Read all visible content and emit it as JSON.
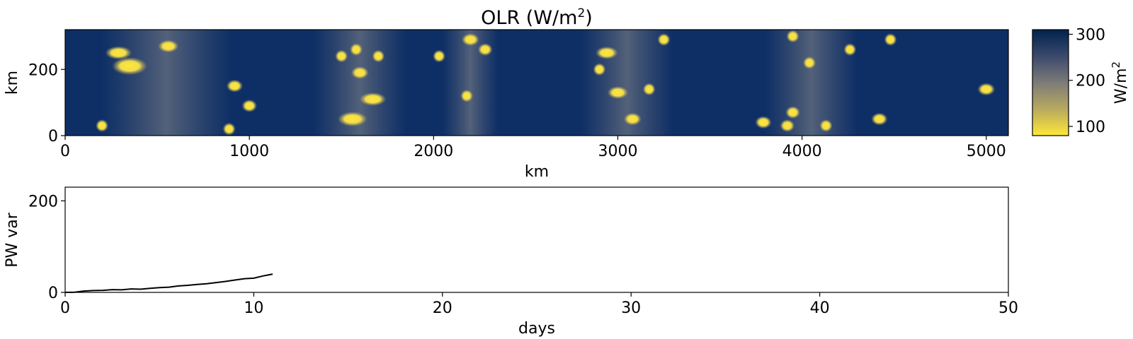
{
  "chart_data": [
    {
      "type": "heatmap",
      "title": "OLR (W/m",
      "title_superscript": "2",
      "title_close": ")",
      "xlabel": "km",
      "ylabel": "km",
      "xlim": [
        0,
        5120
      ],
      "ylim": [
        0,
        320
      ],
      "xticks": [
        0,
        1000,
        2000,
        3000,
        4000,
        5000
      ],
      "yticks": [
        0,
        200
      ],
      "colorbar": {
        "label": "W/m",
        "label_superscript": "2",
        "range": [
          80,
          310
        ],
        "ticks": [
          100,
          200,
          300
        ],
        "colormap": "cividis_r",
        "high_color": "#00224e",
        "low_color": "#fee838"
      },
      "features": {
        "moist_bands_km": [
          [
            200,
            900
          ],
          [
            1350,
            1850
          ],
          [
            2050,
            2350
          ],
          [
            2800,
            3300
          ],
          [
            3800,
            4300
          ]
        ],
        "convective_cells": [
          [
            350,
            210,
            60
          ],
          [
            290,
            250,
            45
          ],
          [
            560,
            270,
            35
          ],
          [
            920,
            150,
            28
          ],
          [
            1000,
            90,
            26
          ],
          [
            890,
            20,
            22
          ],
          [
            200,
            30,
            18
          ],
          [
            1560,
            50,
            50
          ],
          [
            1670,
            110,
            45
          ],
          [
            1600,
            190,
            30
          ],
          [
            1500,
            240,
            22
          ],
          [
            1580,
            260,
            20
          ],
          [
            1700,
            240,
            18
          ],
          [
            2200,
            290,
            30
          ],
          [
            2280,
            260,
            25
          ],
          [
            2030,
            240,
            15
          ],
          [
            2180,
            120,
            20
          ],
          [
            2940,
            250,
            38
          ],
          [
            3000,
            130,
            35
          ],
          [
            3080,
            50,
            30
          ],
          [
            3250,
            290,
            22
          ],
          [
            3170,
            140,
            20
          ],
          [
            2900,
            200,
            18
          ],
          [
            3790,
            40,
            28
          ],
          [
            3920,
            30,
            25
          ],
          [
            4040,
            220,
            22
          ],
          [
            3950,
            70,
            25
          ],
          [
            4130,
            30,
            22
          ],
          [
            4420,
            50,
            28
          ],
          [
            4480,
            290,
            18
          ],
          [
            5000,
            140,
            30
          ],
          [
            4260,
            260,
            18
          ],
          [
            3950,
            300,
            22
          ]
        ]
      }
    },
    {
      "type": "line",
      "xlabel": "days",
      "ylabel": "PW var",
      "xlim": [
        0,
        50
      ],
      "ylim": [
        0,
        230
      ],
      "xticks": [
        0,
        10,
        20,
        30,
        40,
        50
      ],
      "yticks": [
        0,
        200
      ],
      "series": [
        {
          "color": "#000000",
          "x": [
            0,
            0.5,
            1,
            1.5,
            2,
            2.5,
            3,
            3.5,
            4,
            4.5,
            5,
            5.5,
            6,
            6.5,
            7,
            7.5,
            8,
            8.5,
            9,
            9.5,
            10,
            10.5,
            11
          ],
          "y": [
            0,
            0.5,
            3,
            4,
            4.5,
            6,
            5.5,
            7.5,
            7,
            9,
            10.5,
            11.5,
            14,
            15.5,
            17.5,
            19,
            21.5,
            24,
            27,
            30,
            31,
            36,
            40
          ]
        }
      ]
    }
  ]
}
